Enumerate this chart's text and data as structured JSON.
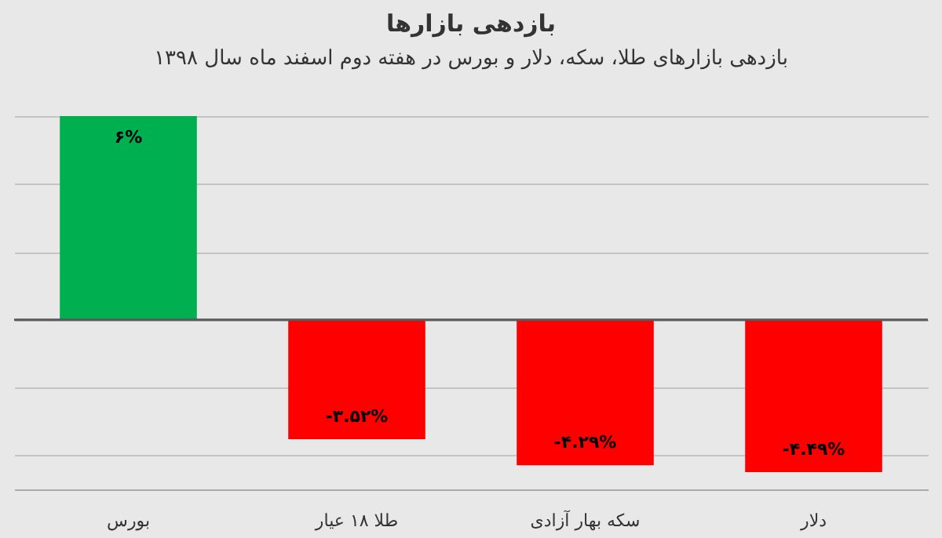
{
  "chart_data": {
    "type": "bar",
    "title": "بازدهی بازارها",
    "subtitle": "بازدهی بازارهای طلا، سکه، دلار و بورس در هفته دوم اسفند ماه سال ۱۳۹۸",
    "categories": [
      "بورس",
      "طلا ۱۸ عیار",
      "سکه بهار آزادی",
      "دلار"
    ],
    "values": [
      6,
      -3.52,
      -4.29,
      -4.49
    ],
    "colors": [
      "#00b050",
      "#ff0000",
      "#ff0000",
      "#ff0000"
    ],
    "value_labels": [
      "۶%",
      "-۳.۵۲%",
      "-۴.۲۹%",
      "-۴.۴۹%"
    ],
    "grid": "y",
    "tick_labels": "x",
    "ref_lines": [
      {
        "axis": "y",
        "value": 0,
        "color": "#595959"
      }
    ]
  }
}
